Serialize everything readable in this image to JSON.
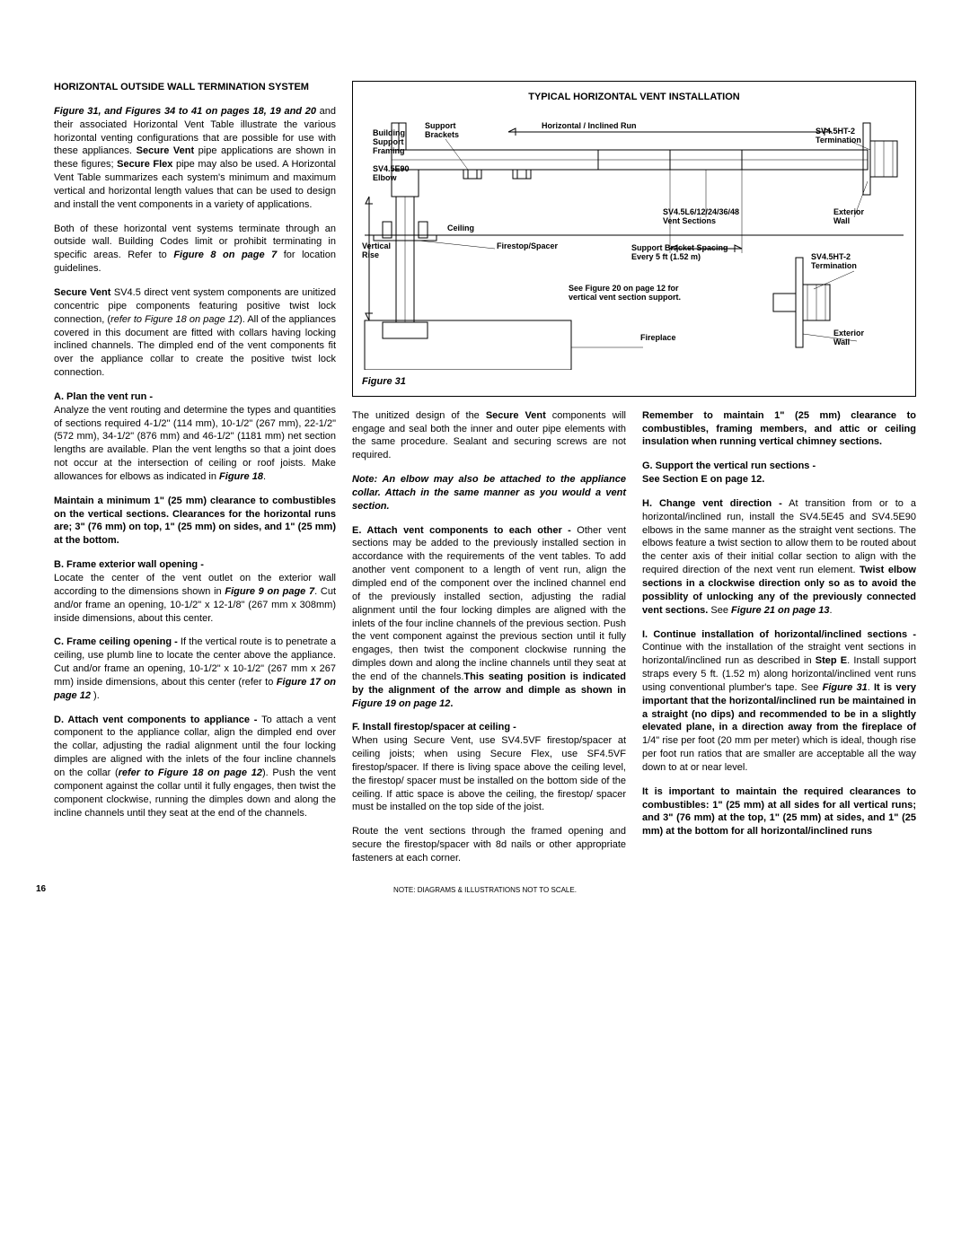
{
  "page_number": "16",
  "footer_note": "NOTE: DIAGRAMS & ILLUSTRATIONS NOT TO SCALE.",
  "figure": {
    "title": "TYPICAL HORIZONTAL VENT INSTALLATION",
    "caption": "Figure 31",
    "labels": {
      "building_support": "Building\nSupport\nFraming",
      "support_brackets": "Support\nBrackets",
      "horiz_run": "Horizontal / Inclined Run",
      "sv45ht2_top": "SV4.5HT-2\nTermination",
      "elbow": "SV4.5E90\nElbow",
      "ceiling": "Ceiling",
      "vertical_rise": "Vertical\nRise",
      "firestop": "Firestop/Spacer",
      "vent_sections": "SV4.5L6/12/24/36/48\nVent Sections",
      "ext_wall_top": "Exterior\nWall",
      "bracket_spacing": "Support Bracket Spacing\nEvery 5 ft (1.52 m)",
      "sv45ht2_bot": "SV4.5HT-2\nTermination",
      "see_fig20": "See Figure 20 on page 12 for\nvertical vent section support.",
      "fireplace": "Fireplace",
      "ext_wall_bot": "Exterior\nWall"
    }
  },
  "col1": {
    "h1": "HORIZONTAL OUTSIDE WALL TERMINATION SYSTEM",
    "p1a": "Figure 31, and Figures 34 to 41 on pages 18, 19 and 20",
    "p1b": " and their associated Horizontal Vent Table illustrate the various horizontal venting configurations that are possible for use with these appliances. ",
    "p1c": "Secure Vent",
    "p1d": " pipe applications are shown in these figures; ",
    "p1e": "Secure Flex",
    "p1f": " pipe may also be used. A Horizontal Vent Table summarizes each system's minimum and maximum vertical and horizontal length values that can be used to design and install the vent components in a variety of applications.",
    "p2a": "Both of these horizontal vent systems terminate through an outside wall. Building Codes limit or prohibit terminating in specific areas. Refer to ",
    "p2b": "Figure 8 on page 7",
    "p2c": " for location guidelines.",
    "p3a": "Secure Vent",
    "p3b": " SV4.5 direct vent system components are unitized concentric pipe components featuring positive twist lock connection, (",
    "p3c": "refer to Figure 18 on page 12",
    "p3d": "). All of the appliances covered in this document are fitted with collars having locking inclined channels. The dimpled end of the vent components fit over the appliance collar to create the positive twist lock connection.",
    "h2": "A. Plan the vent run -",
    "p4": "Analyze the vent routing and determine the types and quantities of sections required 4-1/2\" (114 mm), 10-1/2\" (267 mm), 22-1/2\" (572 mm), 34-1/2\" (876 mm) and 46-1/2\" (1181 mm) net section lengths are available. Plan the vent lengths so that a joint does not occur at the intersection of ceiling or roof joists. Make allowances for elbows as indicated in ",
    "p4b": "Figure 18",
    "p4c": ".",
    "p5": "Maintain a minimum 1\" (25 mm) clearance to combustibles on the vertical sections. Clearances for the horizontal runs are; 3\" (76 mm) on top, 1\" (25 mm) on sides, and 1\" (25 mm) at the bottom.",
    "h3": "B. Frame exterior wall opening -",
    "p6": "Locate the center of the vent outlet on the exterior wall according to the dimensions shown in ",
    "p6b": "Figure 9 on page 7",
    "p6c": ". Cut and/or frame an opening, 10-1/2\" x 12-1/8\" (267 mm x 308mm) inside dimensions, about this center.",
    "p7a": "C. Frame ceiling opening -",
    "p7b": " If the vertical route is to penetrate a ceiling, use plumb line to locate the center above the appliance. Cut and/or frame an opening, 10-1/2\" x 10-1/2\" (267 mm x 267 mm) inside dimensions, about this center (refer to ",
    "p7c": "Figure 17 on page 12",
    "p7d": " ).",
    "p8a": "D. Attach vent components to appliance -",
    "p8b": " To attach a vent component to the appliance collar, align the dimpled end over the collar, adjusting the radial alignment until the four locking dimples are aligned with the inlets of the four incline channels on the collar (",
    "p8c": "refer to Figure 18 on page 12",
    "p8d": "). Push the vent component against the collar until it fully engages, then twist the component clockwise, running the dimples down and along the incline channels until they seat at the end of the channels."
  },
  "col2": {
    "p1a": "The unitized design of the ",
    "p1b": "Secure Vent",
    "p1c": " components will engage and seal both the inner and outer pipe elements with the same procedure. Sealant and securing screws are not required.",
    "p2": "Note: An elbow may also be attached to the appliance collar. Attach in the same manner as you would a vent section.",
    "p3a": "E. Attach vent components to each other -",
    "p3b": " Other vent sections may be added to the previously installed section in accordance with the requirements of the vent tables. To add another vent component to a length of vent run, align the dimpled end of the component over the inclined channel end of the previously installed section, adjusting the radial alignment until the four locking dimples are aligned with the inlets of the four incline channels of the previous section. Push the vent component against the previous section until it fully engages, then twist the component clockwise running the dimples down and along the incline channels until they seat at the end of the channels.",
    "p3c": "This seating position is indicated by the alignment of the arrow and dimple as shown in ",
    "p3d": "Figure 19 on page 12",
    "p3e": ".",
    "h1": "F. Install firestop/spacer at ceiling -",
    "p4": "When using Secure Vent, use SV4.5VF firestop/spacer at ceiling joists; when using Secure Flex, use SF4.5VF firestop/spacer. If there is living space above the ceiling level, the firestop/ spacer must be installed on the bottom side of the ceiling. If attic space is above the ceiling, the firestop/ spacer must be installed on the top side of the joist.",
    "p5": "Route the vent sections through the framed opening and secure the firestop/spacer with 8d nails or other appropriate fasteners at each corner."
  },
  "col3": {
    "p1": "Remember to maintain 1\" (25 mm) clearance to combustibles, framing members, and attic or ceiling insulation when running vertical chimney sections.",
    "h1": "G. Support the vertical run sections -",
    "p2": "See Section E on page 12.",
    "p3a": "H. Change vent direction -",
    "p3b": " At transition from or to a horizontal/inclined run, install the SV4.5E45 and SV4.5E90 elbows in the same manner as the straight vent sections. The elbows feature a twist section to allow them to be routed about the center axis of their initial collar section to align with the required direction of the next vent run element. ",
    "p3c": "Twist elbow sections in a clockwise direction only so as to avoid the possiblity of unlocking any of the previously connected vent sections.",
    "p3d": " See ",
    "p3e": "Figure 21 on page 13",
    "p3f": ".",
    "p4a": "I. Continue installation of horizontal/inclined sections -",
    "p4b": " Continue with the installation of the straight vent sections in horizontal/inclined run as described in ",
    "p4c": "Step E",
    "p4d": ". Install support straps every 5 ft. (1.52 m) along horizontal/inclined vent runs using conventional plumber's tape. See ",
    "p4e": "Figure 31",
    "p4f": ". ",
    "p4g": "It is very important that the horizontal/inclined run be maintained in a straight (no dips) and recommended to be in a slightly elevated plane, in a direction away from the fireplace of ",
    "p4h": "1/4\" rise per foot (20 mm per meter) which is ideal, though rise per foot run ratios that are smaller are acceptable all the way down to at or near level.",
    "p5": "It is important to maintain the required clearances to combustibles: 1\" (25 mm) at all sides for all vertical runs; and 3\" (76 mm) at the top, 1\" (25 mm) at sides, and 1\" (25 mm) at the bottom for all horizontal/inclined runs"
  }
}
